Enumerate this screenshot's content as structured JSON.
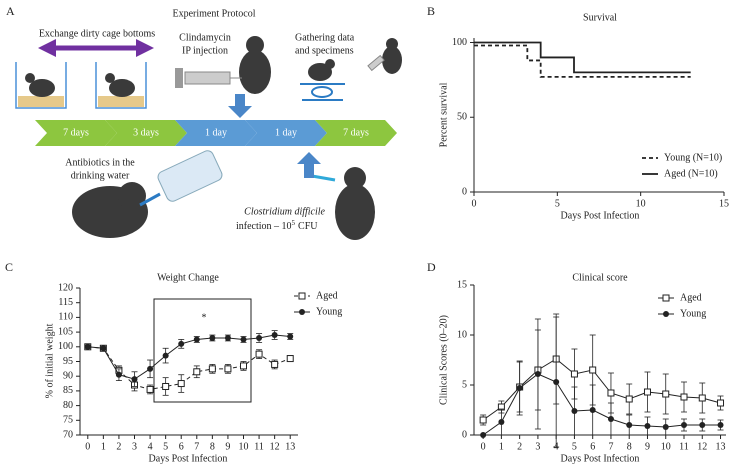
{
  "protocol": {
    "panel_label": "A",
    "title": "Experiment Protocol",
    "cage_exchange": "Exchange dirty cage bottoms",
    "injection": [
      "Clindamycin",
      "IP injection"
    ],
    "gathering": [
      "Gathering data",
      "and specimens"
    ],
    "timeline": [
      "7 days",
      "3 days",
      "1 day",
      "1 day",
      "7 days"
    ],
    "antibiotics": [
      "Antibiotics in the",
      "drinking water"
    ],
    "infection": {
      "organism": "Clostridium difficile",
      "text": "infection – 10",
      "exponent": "5",
      "unit": "CFU"
    }
  },
  "chart_data": [
    {
      "type": "line",
      "panel_label": "B",
      "title": "Survival",
      "xlabel": "Days Post Infection",
      "ylabel": "Percent survival",
      "xlim": [
        0,
        15
      ],
      "xticks": [
        0,
        5,
        10,
        15
      ],
      "ylim": [
        0,
        103
      ],
      "yticks": [
        0,
        50,
        100
      ],
      "legend": "lower right",
      "series": [
        {
          "name": "Young (N=10)",
          "color": "#222222",
          "line_style": "dashed",
          "marker": "none",
          "x": [
            0,
            3.2,
            3.2,
            4,
            4,
            13
          ],
          "values": [
            98,
            98,
            88,
            88,
            77,
            77
          ]
        },
        {
          "name": "Aged (N=10)",
          "color": "#222222",
          "line_style": "solid",
          "marker": "none",
          "x": [
            0,
            4,
            4,
            6,
            6,
            13
          ],
          "values": [
            100,
            100,
            90,
            90,
            80,
            80
          ]
        }
      ]
    },
    {
      "type": "line",
      "panel_label": "C",
      "title": "Weight Change",
      "xlabel": "Days Post Infection",
      "ylabel": "% of initial weight",
      "xlim": [
        -0.5,
        13.5
      ],
      "xticks": [
        0,
        1,
        2,
        3,
        4,
        5,
        6,
        7,
        8,
        9,
        10,
        11,
        12,
        13
      ],
      "ylim": [
        70,
        120
      ],
      "yticks": [
        70,
        75,
        80,
        85,
        90,
        95,
        100,
        105,
        110,
        115,
        120
      ],
      "legend": "upper right",
      "annotation": "*",
      "series": [
        {
          "name": "Aged",
          "color": "#222222",
          "line_style": "dashed",
          "marker": "square-open",
          "x": [
            0,
            1,
            2,
            3,
            4,
            5,
            6,
            7,
            8,
            9,
            10,
            11,
            12,
            13
          ],
          "values": [
            100,
            99.5,
            92,
            87,
            85.5,
            86.5,
            87.5,
            91.5,
            92.5,
            92.5,
            93.5,
            97.5,
            94,
            96
          ],
          "errors": [
            0.5,
            0.5,
            1.5,
            2,
            1.5,
            3,
            3,
            2,
            1.5,
            1.5,
            1.5,
            1.5,
            1.5,
            1
          ]
        },
        {
          "name": "Young",
          "color": "#222222",
          "line_style": "solid",
          "marker": "circle",
          "x": [
            0,
            1,
            2,
            3,
            4,
            5,
            6,
            7,
            8,
            9,
            10,
            11,
            12,
            13
          ],
          "values": [
            100,
            99.5,
            90.5,
            89,
            92.5,
            97,
            101,
            102.5,
            103,
            103,
            102.5,
            103,
            104,
            103.5
          ],
          "errors": [
            0.5,
            0.5,
            2,
            2.5,
            3,
            2.5,
            1.5,
            1,
            1,
            1,
            1,
            1.5,
            1.5,
            1
          ]
        }
      ]
    },
    {
      "type": "line",
      "panel_label": "D",
      "title": "Clinical score",
      "xlabel": "Days Post Infection",
      "ylabel": "Clinical Scores (0–20)",
      "xlim": [
        -0.5,
        13.3
      ],
      "xticks": [
        0,
        1,
        2,
        3,
        4,
        5,
        6,
        7,
        8,
        9,
        10,
        11,
        12,
        13
      ],
      "ylim": [
        0,
        15
      ],
      "yticks": [
        0,
        5,
        10,
        15
      ],
      "legend": "upper right",
      "series": [
        {
          "name": "Aged",
          "color": "#222222",
          "line_style": "solid",
          "marker": "square-open",
          "x": [
            0,
            1,
            2,
            3,
            4,
            5,
            6,
            7,
            8,
            9,
            10,
            11,
            12,
            13
          ],
          "values": [
            1.5,
            2.8,
            4.8,
            6.5,
            7.6,
            6.1,
            6.5,
            4.2,
            3.6,
            4.3,
            4.1,
            3.8,
            3.7,
            3.2
          ],
          "errors": [
            0.5,
            0.6,
            2.5,
            4,
            4.5,
            2.5,
            3.5,
            2,
            1.5,
            2,
            2,
            1.5,
            1.5,
            0.7
          ]
        },
        {
          "name": "Young",
          "color": "#222222",
          "line_style": "solid",
          "marker": "circle",
          "x": [
            0,
            1,
            2,
            3,
            4,
            5,
            6,
            7,
            8,
            9,
            10,
            11,
            12,
            13
          ],
          "values": [
            0,
            1.3,
            4.7,
            6.1,
            5.3,
            2.4,
            2.5,
            1.6,
            1.0,
            0.9,
            0.8,
            1.0,
            1.0,
            1.0
          ],
          "errors": [
            0,
            1.3,
            2.7,
            5.5,
            6.5,
            2.4,
            2.5,
            1.6,
            1,
            0.9,
            0.8,
            0.6,
            0.6,
            0.5
          ]
        }
      ]
    }
  ]
}
